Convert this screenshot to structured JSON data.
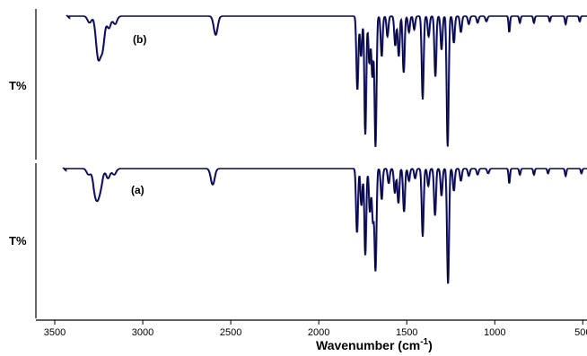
{
  "chart_data": {
    "type": "line",
    "x_axis": {
      "label": "Wavenumber (cm",
      "label_sup": "-1",
      "label_close": ")",
      "range": [
        3550,
        450
      ],
      "reversed": true,
      "ticks": [
        3500,
        3000,
        2500,
        2000,
        1500,
        1000,
        500
      ],
      "tick_labels": [
        "3500",
        "3000",
        "2500",
        "2000",
        "1500",
        "1000",
        "500"
      ]
    },
    "grid": false,
    "panels": [
      {
        "label": "(b)",
        "ylabel": "T%",
        "xrange": [
          3420,
          450
        ],
        "bands": [
          {
            "x": 3305,
            "depth": 0.05
          },
          {
            "x": 3262,
            "depth": 0.16
          },
          {
            "x": 3250,
            "depth": 0.2
          },
          {
            "x": 3230,
            "depth": 0.22
          },
          {
            "x": 3195,
            "depth": 0.09
          },
          {
            "x": 3160,
            "depth": 0.06
          },
          {
            "x": 2588,
            "depth": 0.14
          },
          {
            "x": 1783,
            "depth": 0.55
          },
          {
            "x": 1762,
            "depth": 0.3
          },
          {
            "x": 1738,
            "depth": 0.88
          },
          {
            "x": 1715,
            "depth": 0.35
          },
          {
            "x": 1698,
            "depth": 0.45
          },
          {
            "x": 1680,
            "depth": 0.97
          },
          {
            "x": 1645,
            "depth": 0.3
          },
          {
            "x": 1612,
            "depth": 0.15
          },
          {
            "x": 1568,
            "depth": 0.22
          },
          {
            "x": 1548,
            "depth": 0.3
          },
          {
            "x": 1520,
            "depth": 0.42
          },
          {
            "x": 1490,
            "depth": 0.12
          },
          {
            "x": 1460,
            "depth": 0.1
          },
          {
            "x": 1412,
            "depth": 0.62
          },
          {
            "x": 1378,
            "depth": 0.15
          },
          {
            "x": 1340,
            "depth": 0.45
          },
          {
            "x": 1305,
            "depth": 0.25
          },
          {
            "x": 1270,
            "depth": 0.97
          },
          {
            "x": 1235,
            "depth": 0.2
          },
          {
            "x": 1195,
            "depth": 0.12
          },
          {
            "x": 1150,
            "depth": 0.06
          },
          {
            "x": 1100,
            "depth": 0.05
          },
          {
            "x": 1050,
            "depth": 0.04
          },
          {
            "x": 920,
            "depth": 0.12
          },
          {
            "x": 860,
            "depth": 0.05
          },
          {
            "x": 780,
            "depth": 0.05
          },
          {
            "x": 690,
            "depth": 0.04
          },
          {
            "x": 600,
            "depth": 0.06
          },
          {
            "x": 520,
            "depth": 0.04
          }
        ]
      },
      {
        "label": "(a)",
        "ylabel": "T%",
        "xrange": [
          3440,
          450
        ],
        "bands": [
          {
            "x": 3310,
            "depth": 0.05
          },
          {
            "x": 3275,
            "depth": 0.16
          },
          {
            "x": 3258,
            "depth": 0.18
          },
          {
            "x": 3240,
            "depth": 0.12
          },
          {
            "x": 3200,
            "depth": 0.08
          },
          {
            "x": 3165,
            "depth": 0.05
          },
          {
            "x": 2605,
            "depth": 0.13
          },
          {
            "x": 1785,
            "depth": 0.52
          },
          {
            "x": 1760,
            "depth": 0.3
          },
          {
            "x": 1738,
            "depth": 0.7
          },
          {
            "x": 1712,
            "depth": 0.35
          },
          {
            "x": 1695,
            "depth": 0.42
          },
          {
            "x": 1680,
            "depth": 0.82
          },
          {
            "x": 1645,
            "depth": 0.25
          },
          {
            "x": 1605,
            "depth": 0.12
          },
          {
            "x": 1570,
            "depth": 0.2
          },
          {
            "x": 1550,
            "depth": 0.28
          },
          {
            "x": 1518,
            "depth": 0.35
          },
          {
            "x": 1490,
            "depth": 0.1
          },
          {
            "x": 1455,
            "depth": 0.08
          },
          {
            "x": 1412,
            "depth": 0.55
          },
          {
            "x": 1380,
            "depth": 0.14
          },
          {
            "x": 1342,
            "depth": 0.38
          },
          {
            "x": 1305,
            "depth": 0.22
          },
          {
            "x": 1268,
            "depth": 0.93
          },
          {
            "x": 1235,
            "depth": 0.18
          },
          {
            "x": 1195,
            "depth": 0.1
          },
          {
            "x": 1150,
            "depth": 0.06
          },
          {
            "x": 1100,
            "depth": 0.05
          },
          {
            "x": 1040,
            "depth": 0.04
          },
          {
            "x": 920,
            "depth": 0.12
          },
          {
            "x": 860,
            "depth": 0.05
          },
          {
            "x": 780,
            "depth": 0.05
          },
          {
            "x": 700,
            "depth": 0.04
          },
          {
            "x": 600,
            "depth": 0.06
          },
          {
            "x": 510,
            "depth": 0.04
          }
        ]
      }
    ],
    "colors": {
      "spectrum": "#000000",
      "overlay": "#1f1fb4",
      "axis": "#000000"
    }
  }
}
